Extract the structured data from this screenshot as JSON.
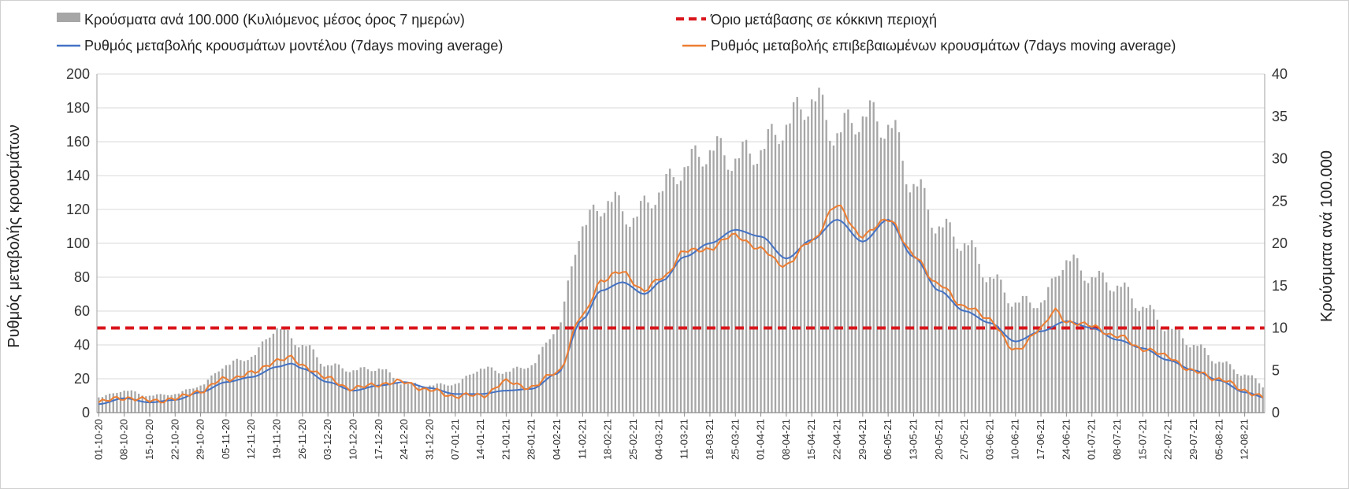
{
  "chart_data": {
    "type": "bar+line",
    "legend": {
      "bars": "Κρούσματα ανά 100.000 (Κυλιόμενος μέσος όρος 7 ημερών)",
      "threshold": "Όριο μετάβασης σε κόκκινη περιοχή",
      "model": "Ρυθμός μεταβολής κρουσμάτων μοντέλου (7days moving average)",
      "confirmed": "Ρυθμός μεταβολής επιβεβαιωμένων κρουσμάτων (7days moving average)"
    },
    "y_left": {
      "label": "Ρυθμός μεταβολής κρουσμάτων",
      "min": 0,
      "max": 200,
      "step": 20
    },
    "y_right": {
      "label": "Κρούσματα ανά 100.000",
      "min": 0,
      "max": 40,
      "step": 5
    },
    "threshold_value": 50,
    "x_start": "2020-10-01",
    "x_end": "2021-08-17",
    "x_tick_labels": [
      "01-10-20",
      "08-10-20",
      "15-10-20",
      "22-10-20",
      "29-10-20",
      "05-11-20",
      "12-11-20",
      "19-11-20",
      "26-11-20",
      "03-12-20",
      "10-12-20",
      "17-12-20",
      "24-12-20",
      "31-12-20",
      "07-01-21",
      "14-01-21",
      "21-01-21",
      "28-01-21",
      "04-02-21",
      "11-02-21",
      "18-02-21",
      "25-02-21",
      "04-03-21",
      "11-03-21",
      "18-03-21",
      "25-03-21",
      "01-04-21",
      "08-04-21",
      "15-04-21",
      "22-04-21",
      "29-04-21",
      "06-05-21",
      "13-05-21",
      "20-05-21",
      "27-05-21",
      "03-06-21",
      "10-06-21",
      "17-06-21",
      "24-06-21",
      "01-07-21",
      "08-07-21",
      "15-07-21",
      "22-07-21",
      "29-07-21",
      "05-08-21",
      "12-08-21"
    ],
    "bar_series": {
      "name": "Κρούσματα ανά 100.000",
      "axis": "right",
      "keypoints": [
        [
          0,
          1.8
        ],
        [
          7,
          2.6
        ],
        [
          14,
          2.0
        ],
        [
          21,
          2.2
        ],
        [
          28,
          3.2
        ],
        [
          35,
          5.6
        ],
        [
          42,
          6.6
        ],
        [
          49,
          10.0
        ],
        [
          56,
          8.0
        ],
        [
          63,
          5.6
        ],
        [
          70,
          5.0
        ],
        [
          77,
          5.2
        ],
        [
          84,
          3.4
        ],
        [
          91,
          3.2
        ],
        [
          98,
          3.4
        ],
        [
          105,
          5.2
        ],
        [
          112,
          4.8
        ],
        [
          119,
          5.6
        ],
        [
          126,
          10
        ],
        [
          133,
          22
        ],
        [
          140,
          25
        ],
        [
          147,
          23
        ],
        [
          154,
          26
        ],
        [
          161,
          29
        ],
        [
          168,
          31
        ],
        [
          175,
          30
        ],
        [
          182,
          31
        ],
        [
          189,
          34
        ],
        [
          196,
          37
        ],
        [
          203,
          33
        ],
        [
          210,
          35
        ],
        [
          217,
          34
        ],
        [
          224,
          27
        ],
        [
          231,
          22
        ],
        [
          238,
          20
        ],
        [
          245,
          16
        ],
        [
          252,
          13
        ],
        [
          259,
          13
        ],
        [
          266,
          18
        ],
        [
          273,
          16
        ],
        [
          280,
          15
        ],
        [
          287,
          12.5
        ],
        [
          294,
          10
        ],
        [
          301,
          8
        ],
        [
          308,
          6
        ],
        [
          315,
          4.5
        ],
        [
          322,
          2.8
        ],
        [
          329,
          1.8
        ],
        [
          336,
          1.7
        ],
        [
          343,
          3.5
        ],
        [
          350,
          14
        ],
        [
          357,
          19
        ],
        [
          364,
          19.5
        ],
        [
          371,
          20.5
        ],
        [
          378,
          16
        ],
        [
          385,
          8
        ],
        [
          390,
          4.0
        ]
      ]
    },
    "model_series": {
      "name": "Ρυθμός μεταβολής κρουσμάτων μοντέλου (7days moving average)",
      "axis": "left",
      "keypoints": [
        [
          0,
          5
        ],
        [
          7,
          8.5
        ],
        [
          14,
          6
        ],
        [
          21,
          7.5
        ],
        [
          28,
          12
        ],
        [
          35,
          18
        ],
        [
          42,
          21
        ],
        [
          49,
          27
        ],
        [
          53,
          29
        ],
        [
          56,
          26
        ],
        [
          63,
          18
        ],
        [
          70,
          13
        ],
        [
          77,
          16
        ],
        [
          84,
          18
        ],
        [
          91,
          14.5
        ],
        [
          98,
          11
        ],
        [
          105,
          11
        ],
        [
          112,
          13
        ],
        [
          119,
          14
        ],
        [
          126,
          23
        ],
        [
          133,
          55
        ],
        [
          138,
          72
        ],
        [
          144,
          77
        ],
        [
          150,
          70
        ],
        [
          155,
          78
        ],
        [
          161,
          92
        ],
        [
          168,
          100
        ],
        [
          175,
          108
        ],
        [
          182,
          104
        ],
        [
          189,
          91
        ],
        [
          196,
          102
        ],
        [
          203,
          114
        ],
        [
          210,
          101
        ],
        [
          217,
          114
        ],
        [
          224,
          92
        ],
        [
          231,
          72
        ],
        [
          238,
          60
        ],
        [
          245,
          53
        ],
        [
          252,
          42
        ],
        [
          259,
          48
        ],
        [
          266,
          54
        ],
        [
          273,
          50
        ],
        [
          280,
          43
        ],
        [
          287,
          38
        ],
        [
          294,
          31
        ],
        [
          301,
          25
        ],
        [
          308,
          19
        ],
        [
          315,
          12
        ],
        [
          322,
          8
        ],
        [
          329,
          7
        ],
        [
          336,
          6
        ],
        [
          343,
          10
        ],
        [
          350,
          40
        ],
        [
          357,
          63
        ],
        [
          364,
          61
        ],
        [
          371,
          60
        ],
        [
          378,
          75
        ],
        [
          383,
          45
        ],
        [
          390,
          12
        ]
      ]
    },
    "confirmed_series": {
      "name": "Ρυθμός μεταβολής επιβεβαιωμένων κρουσμάτων (7days moving average)",
      "axis": "left",
      "keypoints": [
        [
          0,
          6
        ],
        [
          7,
          9
        ],
        [
          14,
          7
        ],
        [
          21,
          8
        ],
        [
          28,
          13
        ],
        [
          35,
          20
        ],
        [
          42,
          23
        ],
        [
          49,
          31
        ],
        [
          53,
          32
        ],
        [
          56,
          28
        ],
        [
          63,
          20
        ],
        [
          70,
          14
        ],
        [
          77,
          17
        ],
        [
          84,
          18
        ],
        [
          91,
          13
        ],
        [
          98,
          10
        ],
        [
          105,
          10
        ],
        [
          112,
          18
        ],
        [
          119,
          15
        ],
        [
          126,
          24
        ],
        [
          133,
          57
        ],
        [
          138,
          78
        ],
        [
          144,
          83
        ],
        [
          150,
          72
        ],
        [
          155,
          80
        ],
        [
          161,
          95
        ],
        [
          168,
          97
        ],
        [
          175,
          105
        ],
        [
          182,
          96
        ],
        [
          189,
          87
        ],
        [
          196,
          102
        ],
        [
          203,
          122
        ],
        [
          210,
          104
        ],
        [
          217,
          115
        ],
        [
          224,
          93
        ],
        [
          231,
          75
        ],
        [
          238,
          63
        ],
        [
          245,
          55
        ],
        [
          252,
          36
        ],
        [
          259,
          50
        ],
        [
          263,
          60
        ],
        [
          266,
          54
        ],
        [
          273,
          51
        ],
        [
          280,
          45
        ],
        [
          287,
          38
        ],
        [
          294,
          33
        ],
        [
          301,
          24
        ],
        [
          308,
          20
        ],
        [
          315,
          13
        ],
        [
          322,
          8
        ],
        [
          329,
          7
        ],
        [
          336,
          6
        ],
        [
          343,
          9
        ],
        [
          350,
          38
        ],
        [
          357,
          63
        ],
        [
          364,
          62
        ],
        [
          371,
          61
        ],
        [
          378,
          73
        ]
      ]
    },
    "colors": {
      "bars": "#a6a6a6",
      "threshold": "#d9141b",
      "model": "#4472c4",
      "confirmed": "#ed7d31",
      "grid": "#d9d9d9"
    }
  }
}
